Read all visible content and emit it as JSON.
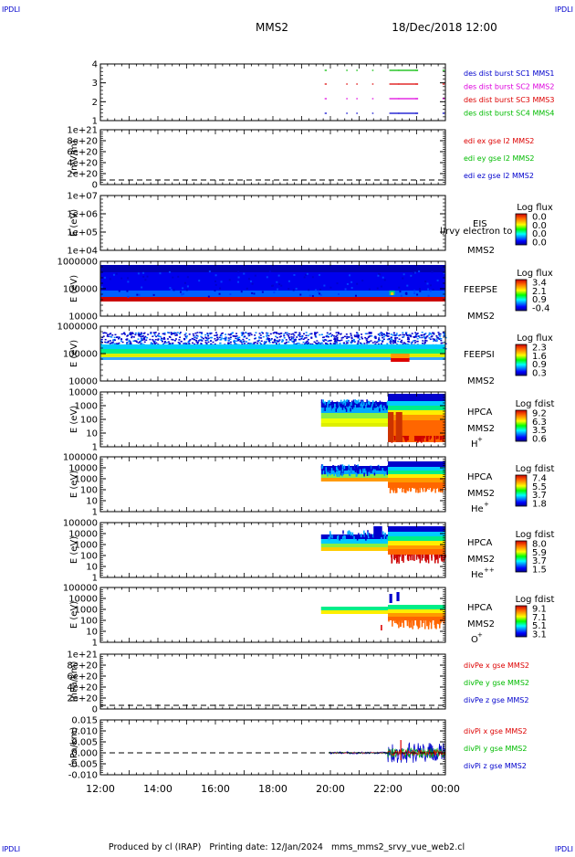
{
  "corner_label": "IPDLI",
  "header": {
    "spacecraft": "MMS2",
    "datetime": "18/Dec/2018 12:00"
  },
  "footer": {
    "text": "Produced by cl (IRAP)   Printing date: 12/Jan/2024   mms_mms2_srvy_vue_web2.cl"
  },
  "time_axis": {
    "ticks": [
      "12:00",
      "14:00",
      "16:00",
      "18:00",
      "20:00",
      "22:00",
      "00:00"
    ]
  },
  "chart_data": [
    {
      "type": "scatter",
      "name": "burst-availability",
      "yticks": [
        "4",
        "3",
        "2",
        "1"
      ],
      "legend": [
        {
          "label": "des dist burst SC1 MMS1",
          "color": "#0000cc"
        },
        {
          "label": "des dist burst SC2 MMS2",
          "color": "#dd00dd"
        },
        {
          "label": "des dist burst SC3 MMS3",
          "color": "#dd0000"
        },
        {
          "label": "des dist burst SC4 MMS4",
          "color": "#00bb00"
        }
      ]
    },
    {
      "type": "line",
      "name": "edi-efield",
      "ylabel": "(mV/m)",
      "yticks": [
        "1e+21",
        "8e+20",
        "6e+20",
        "4e+20",
        "2e+20",
        "0"
      ],
      "legend": [
        {
          "label": "edi ex gse l2 MMS2",
          "color": "#dd0000"
        },
        {
          "label": "edi ey gse l2 MMS2",
          "color": "#00bb00"
        },
        {
          "label": "edi ez gse l2 MMS2",
          "color": "#0000cc"
        }
      ]
    },
    {
      "type": "heatmap",
      "name": "eis",
      "ylabel": "E (eV)",
      "yticks": [
        "1e+07",
        "1e+06",
        "1e+05",
        "1e+04"
      ],
      "instrument": "EIS",
      "spacecraft": "MMS2",
      "overlay_text": "l/rvy electron to",
      "colorbar": {
        "title": "Log flux",
        "ticks": [
          "0.0",
          "0.0",
          "0.0",
          "0.0"
        ]
      }
    },
    {
      "type": "heatmap",
      "name": "feepse",
      "ylabel": "E (eV)",
      "yticks": [
        "1000000",
        "100000",
        "10000"
      ],
      "instrument": "FEEPSE",
      "spacecraft": "MMS2",
      "colorbar": {
        "title": "Log flux",
        "ticks": [
          "3.4",
          "2.1",
          "0.9",
          "-0.4"
        ]
      }
    },
    {
      "type": "heatmap",
      "name": "feepsi",
      "ylabel": "E (eV)",
      "yticks": [
        "1000000",
        "100000",
        "10000"
      ],
      "instrument": "FEEPSI",
      "spacecraft": "MMS2",
      "colorbar": {
        "title": "Log flux",
        "ticks": [
          "2.3",
          "1.6",
          "0.9",
          "0.3"
        ]
      }
    },
    {
      "type": "heatmap",
      "name": "hpca-h",
      "ylabel": "E (eV)",
      "yticks": [
        "10000",
        "1000",
        "100",
        "10",
        "1"
      ],
      "instrument": "HPCA",
      "spacecraft": "MMS2",
      "species": "H",
      "charge": "+",
      "colorbar": {
        "title": "Log fdist",
        "ticks": [
          "9.2",
          "6.3",
          "3.5",
          "0.6"
        ]
      }
    },
    {
      "type": "heatmap",
      "name": "hpca-he",
      "ylabel": "E (eV)",
      "yticks": [
        "100000",
        "10000",
        "1000",
        "100",
        "10",
        "1"
      ],
      "instrument": "HPCA",
      "spacecraft": "MMS2",
      "species": "He",
      "charge": "+",
      "colorbar": {
        "title": "Log fdist",
        "ticks": [
          "7.4",
          "5.5",
          "3.7",
          "1.8"
        ]
      }
    },
    {
      "type": "heatmap",
      "name": "hpca-he2",
      "ylabel": "E (eV)",
      "yticks": [
        "100000",
        "10000",
        "1000",
        "100",
        "10",
        "1"
      ],
      "instrument": "HPCA",
      "spacecraft": "MMS2",
      "species": "He",
      "charge": "++",
      "colorbar": {
        "title": "Log fdist",
        "ticks": [
          "8.0",
          "5.9",
          "3.7",
          "1.5"
        ]
      }
    },
    {
      "type": "heatmap",
      "name": "hpca-o",
      "ylabel": "E (eV)",
      "yticks": [
        "100000",
        "10000",
        "1000",
        "100",
        "10",
        "1"
      ],
      "instrument": "HPCA",
      "spacecraft": "MMS2",
      "species": "O",
      "charge": "+",
      "colorbar": {
        "title": "Log fdist",
        "ticks": [
          "9.1",
          "7.1",
          "5.1",
          "3.1"
        ]
      }
    },
    {
      "type": "line",
      "name": "divpe",
      "ylabel": "(nPa/km)",
      "yticks": [
        "1e+21",
        "8e+20",
        "6e+20",
        "4e+20",
        "2e+20",
        "0"
      ],
      "legend": [
        {
          "label": "divPe x gse MMS2",
          "color": "#dd0000"
        },
        {
          "label": "divPe y gse MMS2",
          "color": "#00bb00"
        },
        {
          "label": "divPe z gse MMS2",
          "color": "#0000cc"
        }
      ]
    },
    {
      "type": "line",
      "name": "divpi",
      "ylabel": "(nPa/km)",
      "yticks": [
        "0.015",
        "0.010",
        "0.005",
        "0.000",
        "-0.005",
        "-0.010"
      ],
      "legend": [
        {
          "label": "divPi x gse MMS2",
          "color": "#dd0000"
        },
        {
          "label": "divPi y gse MMS2",
          "color": "#00bb00"
        },
        {
          "label": "divPi z gse MMS2",
          "color": "#0000cc"
        }
      ]
    }
  ]
}
